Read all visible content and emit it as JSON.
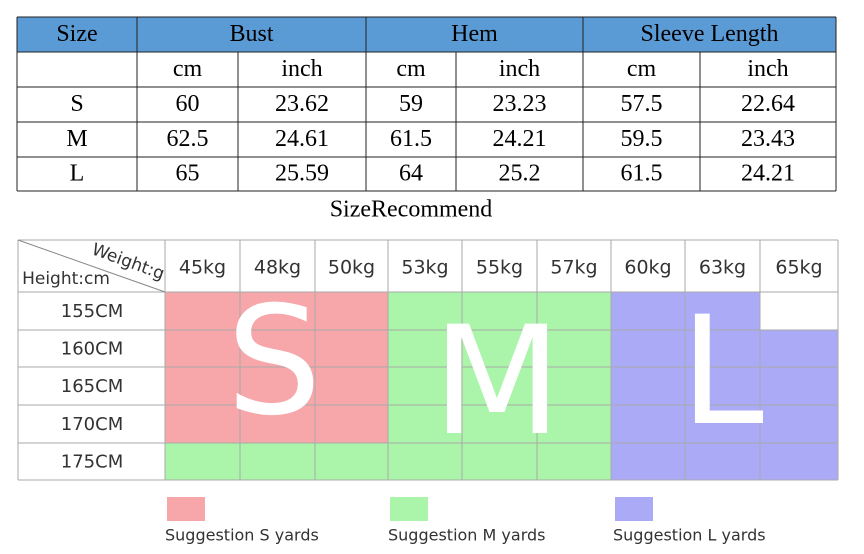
{
  "table": {
    "header": [
      "Size",
      "Bust",
      "Hem",
      "Sleeve Length"
    ],
    "subheader": [
      "cm",
      "inch",
      "cm",
      "inch",
      "cm",
      "inch"
    ],
    "rows": [
      [
        "S",
        "60",
        "23.62",
        "59",
        "23.23",
        "57.5",
        "22.64"
      ],
      [
        "M",
        "62.5",
        "24.61",
        "61.5",
        "24.21",
        "59.5",
        "23.43"
      ],
      [
        "L",
        "65",
        "25.59",
        "64",
        "25.2",
        "61.5",
        "24.21"
      ]
    ]
  },
  "caption": "SizeRecommend",
  "recommend": {
    "corner_weight": "Weight:g",
    "corner_height": "Height:cm",
    "weights": [
      "45kg",
      "48kg",
      "50kg",
      "53kg",
      "55kg",
      "57kg",
      "60kg",
      "63kg",
      "65kg"
    ],
    "heights": [
      "155CM",
      "160CM",
      "165CM",
      "170CM",
      "175CM"
    ],
    "letters": [
      "S",
      "M",
      "L"
    ]
  },
  "legend": [
    "Suggestion S yards",
    "Suggestion M yards",
    "Suggestion L yards"
  ]
}
